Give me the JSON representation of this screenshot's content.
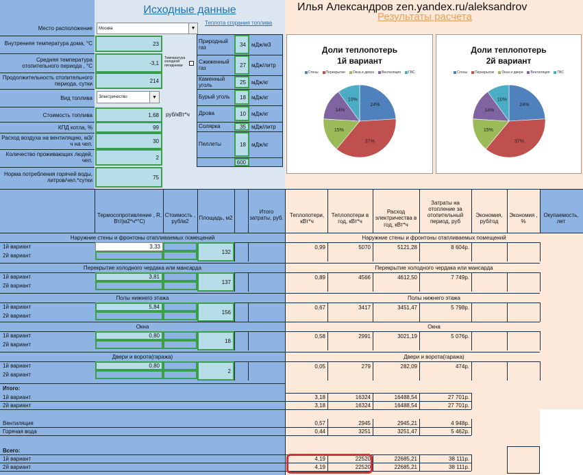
{
  "header": {
    "input_title": "Исходные данные",
    "author": "Илья Александров zen.yandex.ru/aleksandrov",
    "results_title": "Результаты расчета",
    "fuel_heat_link": "Теплота сгорания топлива"
  },
  "inputs": [
    {
      "label": "Место расположение",
      "value": "Москва"
    },
    {
      "label": "Внутренняя температура дома, °C",
      "value": "23"
    },
    {
      "label": "Средняя температура отопительного периода , °C",
      "value": "-3,1"
    },
    {
      "label": "Продолжительность отопительного периода, сутки",
      "value": "214"
    },
    {
      "label": "Вид топлива",
      "value": "Электричество"
    },
    {
      "label": "Стоимость топлива",
      "value": "1,68",
      "unit": "руб/кВт*ч"
    },
    {
      "label": "КПД котла, %",
      "value": "99"
    },
    {
      "label": "Расход воздуха на вентиляцию, м3/ч на чел.",
      "value": "30"
    },
    {
      "label": "Количество проживающих людей, чел.",
      "value": "2"
    },
    {
      "label": "Норма потребления горячей воды, литров/чел.*сутки",
      "value": "75"
    }
  ],
  "cold_period_label": "Температура холодной пятидневки",
  "fuels": [
    {
      "name": "Природный газ",
      "value": "34",
      "unit": "мДж/м3"
    },
    {
      "name": "Сжиженный газ",
      "value": "27",
      "unit": "мДж/литр"
    },
    {
      "name": "Каменный уголь",
      "value": "25",
      "unit": "мДж/кг"
    },
    {
      "name": "Бурый уголь",
      "value": "18",
      "unit": "мДж/кг"
    },
    {
      "name": "Дрова",
      "value": "10",
      "unit": "мДж/кг"
    },
    {
      "name": "Солярка",
      "value": "35",
      "unit": "мДж/литр"
    },
    {
      "name": "Пеллеты",
      "value": "18",
      "unit": "мДж/кг"
    },
    {
      "name": "",
      "value": "600",
      "unit": ""
    }
  ],
  "charts": [
    {
      "title_line1": "Доли теплопотерь",
      "title_line2": "1й вариант"
    },
    {
      "title_line1": "Доли теплопотерь",
      "title_line2": "2й вариант"
    }
  ],
  "chart_data": [
    {
      "type": "pie",
      "title": "Доли теплопотерь 1й вариант",
      "categories": [
        "Стены",
        "Перекрытие",
        "Окна и двери",
        "Вентиляция",
        "ГВС"
      ],
      "values": [
        24,
        37,
        15,
        14,
        10
      ],
      "colors": [
        "#4f81bd",
        "#c0504d",
        "#9bbb59",
        "#8064a2",
        "#4bacc6"
      ],
      "labels": [
        "24%",
        "37%",
        "15%",
        "14%",
        "10%"
      ]
    },
    {
      "type": "pie",
      "title": "Доли теплопотерь 2й вариант",
      "categories": [
        "Стены",
        "Перекрытие",
        "Окна и двери",
        "Вентиляция",
        "ГВС"
      ],
      "values": [
        24,
        37,
        15,
        14,
        10
      ],
      "colors": [
        "#4f81bd",
        "#c0504d",
        "#9bbb59",
        "#8064a2",
        "#4bacc6"
      ],
      "labels": [
        "24%",
        "37%",
        "15%",
        "14%",
        "10%"
      ]
    }
  ],
  "left_headers": [
    "Термосопротивление , R, Вт/(м2*ч*°С)",
    "Стоимость , руб/м2",
    "Площадь, м2",
    "Итого затраты, руб."
  ],
  "right_headers": [
    "Теплопотери, кВт*ч",
    "Теплопотери в год, кВт*ч",
    "Расход электричества в год, кВт*ч",
    "Затраты на отопление за отопительный период, руб",
    "Экономия, руб/год",
    "Экономия , %",
    "Окупаемость, лет"
  ],
  "variant1": "1й вариант",
  "variant2": "2й вариант",
  "sections": [
    {
      "title": "Наружние стены и фронтоны отапливаемых помещений",
      "r": "3,33",
      "area": "132",
      "loss": "0,99",
      "year": "5070",
      "elec": "5121,28",
      "cost": "8 604р."
    },
    {
      "title": "Перекрытие холодного чердака или мансарда",
      "r": "3,81",
      "area": "137",
      "loss": "0,89",
      "year": "4566",
      "elec": "4612,50",
      "cost": "7 749р."
    },
    {
      "title": "Полы нижнего этажа",
      "r": "5,84",
      "area": "156",
      "loss": "0,67",
      "year": "3417",
      "elec": "3451,47",
      "cost": "5 798р."
    },
    {
      "title": "Окна",
      "r": "0,80",
      "area": "18",
      "loss": "0,58",
      "year": "2991",
      "elec": "3021,19",
      "cost": "5 076р."
    },
    {
      "title": "Двери и ворота(гаража)",
      "r": "0,80",
      "area": "2",
      "loss": "0,05",
      "year": "279",
      "elec": "282,09",
      "cost": "474р."
    }
  ],
  "totals": {
    "itogo": "Итого:",
    "itogo_rows": [
      {
        "label": "1й вариант",
        "loss": "3,18",
        "year": "16324",
        "elec": "16488,54",
        "cost": "27 701р."
      },
      {
        "label": "2й вариант",
        "loss": "3,18",
        "year": "16324",
        "elec": "16488,54",
        "cost": "27 701р."
      }
    ],
    "extra_rows": [
      {
        "label": "Вентиляция",
        "loss": "0,57",
        "year": "2945",
        "elec": "2945,21",
        "cost": "4 948р."
      },
      {
        "label": "Горячая вода",
        "loss": "0,44",
        "year": "3251",
        "elec": "3251,47",
        "cost": "5 462р."
      }
    ],
    "vsego": "Всего:",
    "vsego_rows": [
      {
        "label": "1й вариант",
        "loss": "4,19",
        "year": "22520",
        "elec": "22685,21",
        "cost": "38 111р."
      },
      {
        "label": "2й вариант",
        "loss": "4,19",
        "year": "22520",
        "elec": "22685,21",
        "cost": "38 111р."
      }
    ]
  }
}
